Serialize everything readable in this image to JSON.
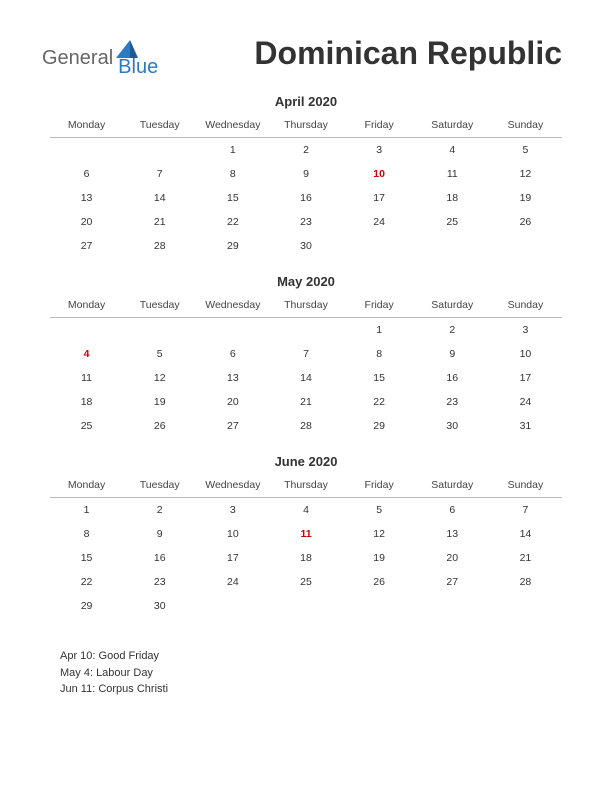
{
  "logo": {
    "text_general": "General",
    "text_blue": "Blue",
    "triangle_color": "#2b7ac4"
  },
  "title": "Dominican Republic",
  "day_headers": [
    "Monday",
    "Tuesday",
    "Wednesday",
    "Thursday",
    "Friday",
    "Saturday",
    "Sunday"
  ],
  "months": [
    {
      "title": "April 2020",
      "weeks": [
        [
          {
            "d": ""
          },
          {
            "d": ""
          },
          {
            "d": "1"
          },
          {
            "d": "2"
          },
          {
            "d": "3"
          },
          {
            "d": "4"
          },
          {
            "d": "5"
          }
        ],
        [
          {
            "d": "6"
          },
          {
            "d": "7"
          },
          {
            "d": "8"
          },
          {
            "d": "9"
          },
          {
            "d": "10",
            "h": true
          },
          {
            "d": "11"
          },
          {
            "d": "12"
          }
        ],
        [
          {
            "d": "13"
          },
          {
            "d": "14"
          },
          {
            "d": "15"
          },
          {
            "d": "16"
          },
          {
            "d": "17"
          },
          {
            "d": "18"
          },
          {
            "d": "19"
          }
        ],
        [
          {
            "d": "20"
          },
          {
            "d": "21"
          },
          {
            "d": "22"
          },
          {
            "d": "23"
          },
          {
            "d": "24"
          },
          {
            "d": "25"
          },
          {
            "d": "26"
          }
        ],
        [
          {
            "d": "27"
          },
          {
            "d": "28"
          },
          {
            "d": "29"
          },
          {
            "d": "30"
          },
          {
            "d": ""
          },
          {
            "d": ""
          },
          {
            "d": ""
          }
        ]
      ]
    },
    {
      "title": "May 2020",
      "weeks": [
        [
          {
            "d": ""
          },
          {
            "d": ""
          },
          {
            "d": ""
          },
          {
            "d": ""
          },
          {
            "d": "1"
          },
          {
            "d": "2"
          },
          {
            "d": "3"
          }
        ],
        [
          {
            "d": "4",
            "h": true
          },
          {
            "d": "5"
          },
          {
            "d": "6"
          },
          {
            "d": "7"
          },
          {
            "d": "8"
          },
          {
            "d": "9"
          },
          {
            "d": "10"
          }
        ],
        [
          {
            "d": "11"
          },
          {
            "d": "12"
          },
          {
            "d": "13"
          },
          {
            "d": "14"
          },
          {
            "d": "15"
          },
          {
            "d": "16"
          },
          {
            "d": "17"
          }
        ],
        [
          {
            "d": "18"
          },
          {
            "d": "19"
          },
          {
            "d": "20"
          },
          {
            "d": "21"
          },
          {
            "d": "22"
          },
          {
            "d": "23"
          },
          {
            "d": "24"
          }
        ],
        [
          {
            "d": "25"
          },
          {
            "d": "26"
          },
          {
            "d": "27"
          },
          {
            "d": "28"
          },
          {
            "d": "29"
          },
          {
            "d": "30"
          },
          {
            "d": "31"
          }
        ]
      ]
    },
    {
      "title": "June 2020",
      "weeks": [
        [
          {
            "d": "1"
          },
          {
            "d": "2"
          },
          {
            "d": "3"
          },
          {
            "d": "4"
          },
          {
            "d": "5"
          },
          {
            "d": "6"
          },
          {
            "d": "7"
          }
        ],
        [
          {
            "d": "8"
          },
          {
            "d": "9"
          },
          {
            "d": "10"
          },
          {
            "d": "11",
            "h": true
          },
          {
            "d": "12"
          },
          {
            "d": "13"
          },
          {
            "d": "14"
          }
        ],
        [
          {
            "d": "15"
          },
          {
            "d": "16"
          },
          {
            "d": "17"
          },
          {
            "d": "18"
          },
          {
            "d": "19"
          },
          {
            "d": "20"
          },
          {
            "d": "21"
          }
        ],
        [
          {
            "d": "22"
          },
          {
            "d": "23"
          },
          {
            "d": "24"
          },
          {
            "d": "25"
          },
          {
            "d": "26"
          },
          {
            "d": "27"
          },
          {
            "d": "28"
          }
        ],
        [
          {
            "d": "29"
          },
          {
            "d": "30"
          },
          {
            "d": ""
          },
          {
            "d": ""
          },
          {
            "d": ""
          },
          {
            "d": ""
          },
          {
            "d": ""
          }
        ]
      ]
    }
  ],
  "holidays": [
    "Apr 10: Good Friday",
    "May 4: Labour Day",
    "Jun 11: Corpus Christi"
  ],
  "colors": {
    "holiday_text": "#cc0000",
    "text": "#333333",
    "header_line": "#bbbbbb",
    "background": "#ffffff"
  },
  "fontsize": {
    "title": 32,
    "month_title": 13,
    "day_header": 10.5,
    "day_cell": 10.5,
    "holiday_list": 11,
    "logo": 20
  }
}
